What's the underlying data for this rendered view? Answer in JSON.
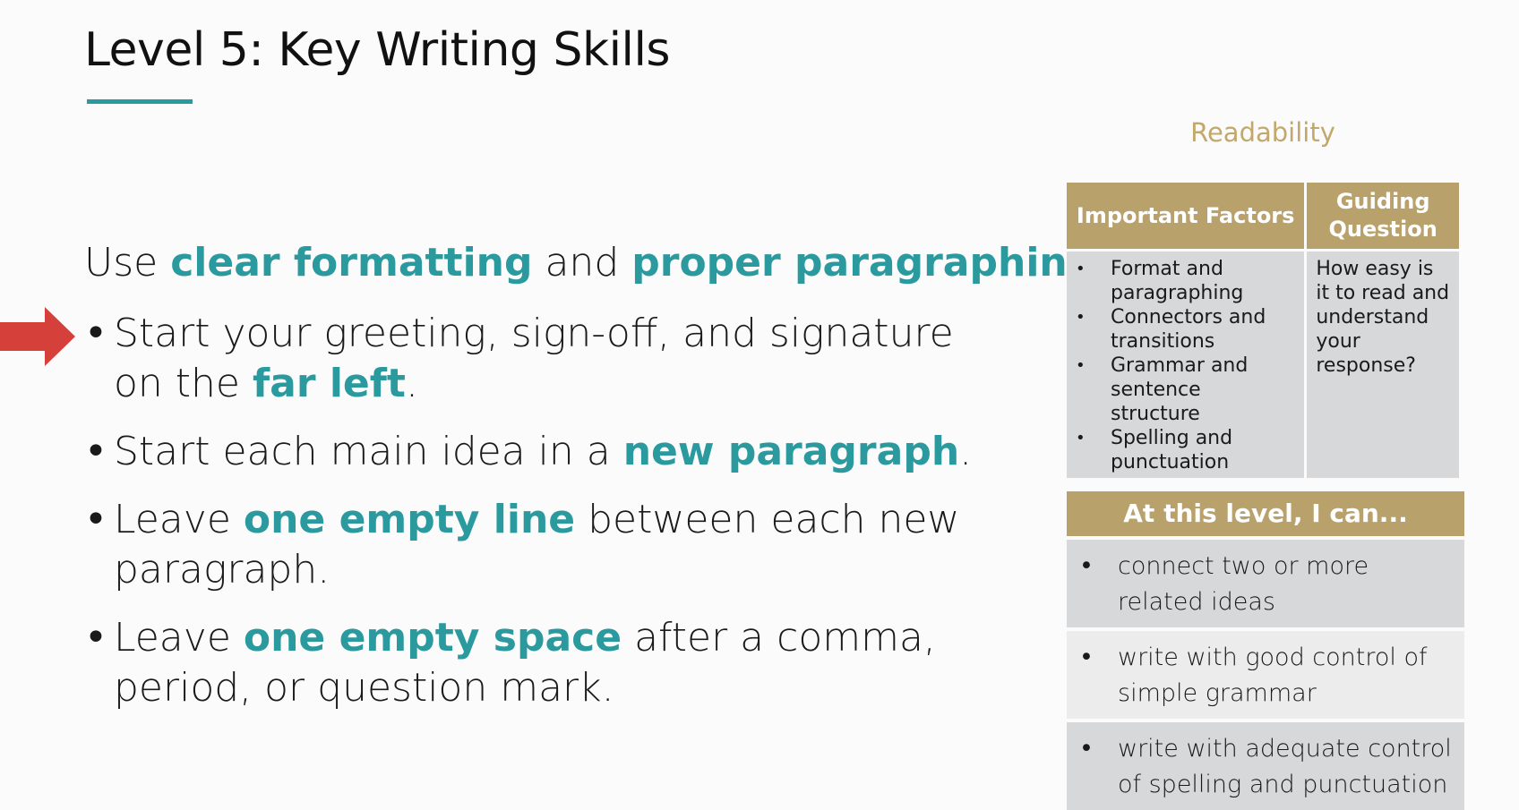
{
  "slide": {
    "title": "Level 5: Key Writing Skills",
    "accent_color": "#2a9a9f",
    "gold_color": "#b9a16b",
    "arrow_color": "#d6403a"
  },
  "intro": {
    "before": "Use ",
    "highlight1": "clear formatting",
    "middle": " and ",
    "highlight2": "proper paragraphing",
    "after": "."
  },
  "bullets": [
    {
      "text_before": "Start your greeting, sign-off, and signature on the ",
      "highlight": "far left",
      "text_after": "."
    },
    {
      "text_before": "Start each main idea in a ",
      "highlight": "new paragraph",
      "text_after": "."
    },
    {
      "text_before": "Leave ",
      "highlight": "one empty line",
      "text_after": " between each new paragraph."
    },
    {
      "text_before": "Leave ",
      "highlight": "one empty space",
      "text_after": " after a comma, period, or question mark."
    }
  ],
  "readability": {
    "title": "Readability",
    "col1_header": "Important Factors",
    "col2_header": "Guiding Question",
    "factors": [
      "Format and paragraphing",
      "Connectors and transitions",
      "Grammar and sentence structure",
      "Spelling and punctuation"
    ],
    "question": "How easy is it to read and understand your response?"
  },
  "at_this_level": {
    "header": "At this level, I can...",
    "items": [
      "connect two or more related ideas",
      "write with good control of simple grammar",
      "write with adequate control of spelling and punctuation"
    ]
  }
}
